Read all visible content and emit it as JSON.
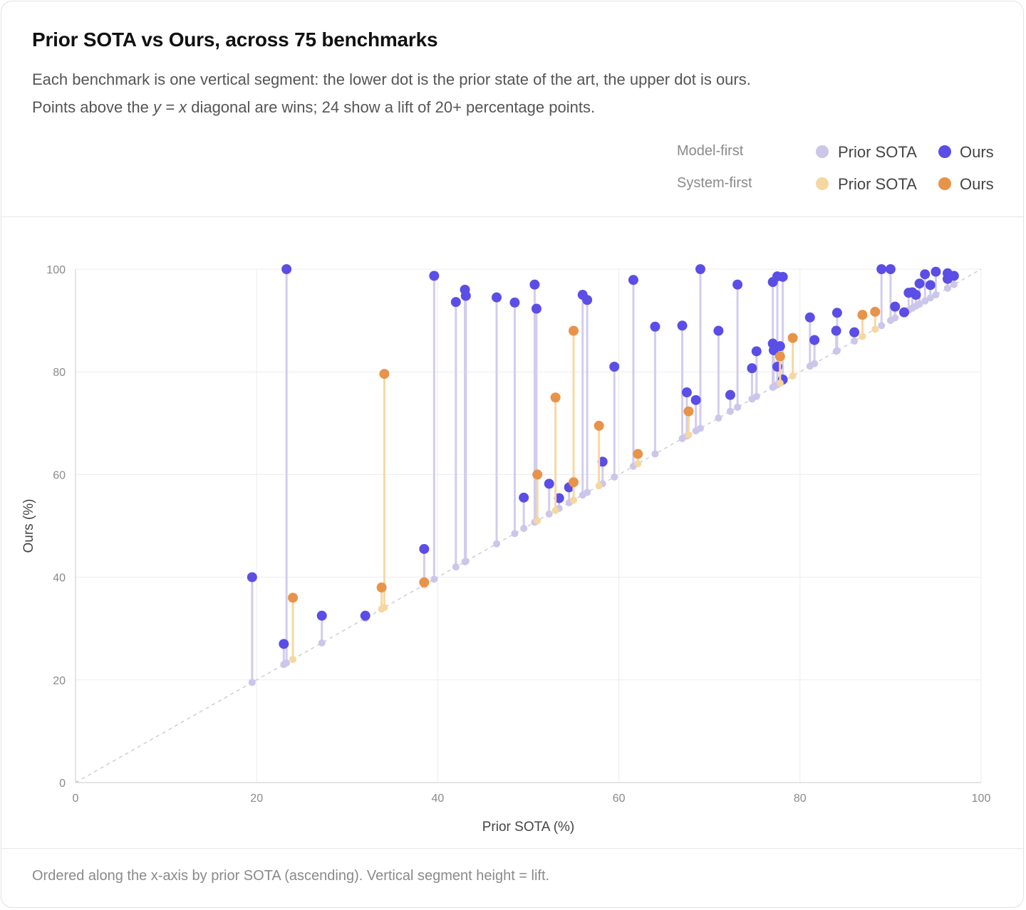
{
  "title": "Prior SOTA vs Ours, across 75 benchmarks",
  "subtitle": {
    "line1": "Each benchmark is one vertical segment: the lower dot is the prior state of the art, the upper dot is ours.",
    "line2_pre": "Points above the ",
    "line2_em": "y = x",
    "line2_post": " diagonal are wins; 24 show a lift of 20+ percentage points."
  },
  "legend": {
    "groups": [
      {
        "label": "Model-first",
        "prior_label": "Prior SOTA",
        "ours_label": "Ours",
        "prior_color": "#cbc6ea",
        "ours_color": "#5b4ee6"
      },
      {
        "label": "System-first",
        "prior_label": "Prior SOTA",
        "ours_label": "Ours",
        "prior_color": "#f5d79f",
        "ours_color": "#e8934a"
      }
    ]
  },
  "footnote": "Ordered along the x-axis by prior SOTA (ascending). Vertical segment height = lift.",
  "colors": {
    "model_line": "#d2cdee",
    "system_line": "#f5d9a4",
    "grid": "#ececef",
    "axis": "#c9c9cf",
    "diagonal": "#c8c8ce"
  },
  "chart_data": {
    "type": "scatter",
    "title": "Prior SOTA vs Ours, across 75 benchmarks",
    "xlabel": "Prior SOTA (%)",
    "ylabel": "Ours (%)",
    "xlim": [
      0,
      100
    ],
    "ylim": [
      0,
      100
    ],
    "xticks": [
      0,
      20,
      40,
      60,
      80,
      100
    ],
    "yticks": [
      0,
      20,
      40,
      60,
      80,
      100
    ],
    "grid": true,
    "legend_position": "top-right",
    "diagonal": "y = x",
    "series": [
      {
        "name": "Model-first",
        "points": [
          {
            "x": 19.5,
            "y": 40.0
          },
          {
            "x": 23.0,
            "y": 27.0
          },
          {
            "x": 23.3,
            "y": 100.0
          },
          {
            "x": 27.2,
            "y": 32.5
          },
          {
            "x": 32.0,
            "y": 32.5
          },
          {
            "x": 38.5,
            "y": 45.5
          },
          {
            "x": 39.6,
            "y": 98.7
          },
          {
            "x": 42.0,
            "y": 93.6
          },
          {
            "x": 43.0,
            "y": 96.0
          },
          {
            "x": 43.1,
            "y": 94.8
          },
          {
            "x": 46.5,
            "y": 94.5
          },
          {
            "x": 48.5,
            "y": 93.5
          },
          {
            "x": 49.5,
            "y": 55.5
          },
          {
            "x": 50.7,
            "y": 97.0
          },
          {
            "x": 50.9,
            "y": 92.3
          },
          {
            "x": 52.3,
            "y": 58.2
          },
          {
            "x": 53.4,
            "y": 55.4
          },
          {
            "x": 54.5,
            "y": 57.5
          },
          {
            "x": 56.0,
            "y": 95.0
          },
          {
            "x": 56.5,
            "y": 94.0
          },
          {
            "x": 58.2,
            "y": 62.5
          },
          {
            "x": 59.5,
            "y": 81.0
          },
          {
            "x": 61.6,
            "y": 97.9
          },
          {
            "x": 64.0,
            "y": 88.8
          },
          {
            "x": 67.0,
            "y": 89.0
          },
          {
            "x": 67.5,
            "y": 76.0
          },
          {
            "x": 68.5,
            "y": 74.5
          },
          {
            "x": 69.0,
            "y": 100.0
          },
          {
            "x": 71.0,
            "y": 88.0
          },
          {
            "x": 72.3,
            "y": 75.5
          },
          {
            "x": 73.1,
            "y": 97.0
          },
          {
            "x": 74.7,
            "y": 80.7
          },
          {
            "x": 75.2,
            "y": 84.0
          },
          {
            "x": 77.0,
            "y": 97.5
          },
          {
            "x": 77.0,
            "y": 85.5
          },
          {
            "x": 77.1,
            "y": 84.2
          },
          {
            "x": 77.5,
            "y": 98.6
          },
          {
            "x": 77.5,
            "y": 81.0
          },
          {
            "x": 77.8,
            "y": 85.0
          },
          {
            "x": 78.1,
            "y": 98.5
          },
          {
            "x": 78.1,
            "y": 78.5
          },
          {
            "x": 81.1,
            "y": 90.6
          },
          {
            "x": 81.6,
            "y": 86.2
          },
          {
            "x": 84.0,
            "y": 88.0
          },
          {
            "x": 84.1,
            "y": 91.5
          },
          {
            "x": 86.0,
            "y": 87.7
          },
          {
            "x": 89.0,
            "y": 100.0
          },
          {
            "x": 90.0,
            "y": 100.0
          },
          {
            "x": 90.5,
            "y": 92.7
          },
          {
            "x": 91.5,
            "y": 91.6
          },
          {
            "x": 92.0,
            "y": 95.4
          },
          {
            "x": 92.4,
            "y": 95.5
          },
          {
            "x": 92.8,
            "y": 95.0
          },
          {
            "x": 93.2,
            "y": 97.2
          },
          {
            "x": 93.8,
            "y": 99.0
          },
          {
            "x": 94.4,
            "y": 96.9
          },
          {
            "x": 95.0,
            "y": 99.5
          },
          {
            "x": 96.3,
            "y": 99.2
          },
          {
            "x": 96.3,
            "y": 98.1
          },
          {
            "x": 97.0,
            "y": 98.7
          }
        ]
      },
      {
        "name": "System-first",
        "points": [
          {
            "x": 24.0,
            "y": 36.0
          },
          {
            "x": 33.8,
            "y": 38.0
          },
          {
            "x": 34.1,
            "y": 79.6
          },
          {
            "x": 38.5,
            "y": 39.0
          },
          {
            "x": 51.0,
            "y": 60.0
          },
          {
            "x": 53.0,
            "y": 75.0
          },
          {
            "x": 55.0,
            "y": 88.0
          },
          {
            "x": 55.0,
            "y": 58.5
          },
          {
            "x": 57.8,
            "y": 69.5
          },
          {
            "x": 62.1,
            "y": 64.0
          },
          {
            "x": 67.7,
            "y": 72.3
          },
          {
            "x": 77.8,
            "y": 83.0
          },
          {
            "x": 79.2,
            "y": 86.6
          },
          {
            "x": 86.9,
            "y": 91.1
          },
          {
            "x": 88.3,
            "y": 91.7
          }
        ]
      }
    ]
  }
}
